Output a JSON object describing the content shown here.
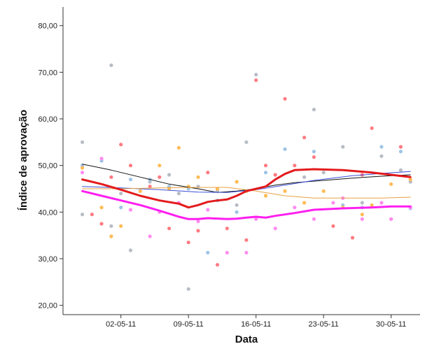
{
  "chart_data": {
    "type": "scatter",
    "xlabel": "Data",
    "ylabel": "Índice de aprovação",
    "x_axis": {
      "min": "2011-04-26",
      "max": "2011-06-02",
      "ticks": [
        "2011-05-02",
        "2011-05-09",
        "2011-05-16",
        "2011-05-23",
        "2011-05-30"
      ],
      "tick_labels": [
        "02-05-11",
        "09-05-11",
        "16-05-11",
        "23-05-11",
        "30-05-11"
      ]
    },
    "y_axis": {
      "min": 18,
      "max": 84,
      "ticks": [
        20,
        30,
        40,
        50,
        60,
        70,
        80
      ],
      "tick_labels": [
        "20,00",
        "30,00",
        "40,00",
        "50,00",
        "60,00",
        "70,00",
        "80,00"
      ]
    },
    "grid": false,
    "legend": "none",
    "series": [
      {
        "color": "#b8bcc4",
        "kind": "points",
        "points": [
          [
            "2011-04-28",
            55.0
          ],
          [
            "2011-04-28",
            39.5
          ],
          [
            "2011-05-01",
            71.5
          ],
          [
            "2011-05-01",
            37.0
          ],
          [
            "2011-05-02",
            44.0
          ],
          [
            "2011-05-03",
            31.8
          ],
          [
            "2011-05-05",
            46.5
          ],
          [
            "2011-05-07",
            48.0
          ],
          [
            "2011-05-08",
            44.0
          ],
          [
            "2011-05-09",
            23.5
          ],
          [
            "2011-05-10",
            45.5
          ],
          [
            "2011-05-12",
            44.5
          ],
          [
            "2011-05-14",
            41.5
          ],
          [
            "2011-05-15",
            55.0
          ],
          [
            "2011-05-16",
            69.5
          ],
          [
            "2011-05-18",
            48.0
          ],
          [
            "2011-05-21",
            47.5
          ],
          [
            "2011-05-22",
            62.0
          ],
          [
            "2011-05-23",
            48.5
          ],
          [
            "2011-05-25",
            54.0
          ],
          [
            "2011-05-27",
            42.0
          ],
          [
            "2011-05-29",
            52.0
          ],
          [
            "2011-05-31",
            49.0
          ],
          [
            "2011-06-01",
            46.5
          ]
        ]
      },
      {
        "color": "#9ec4e6",
        "kind": "points",
        "points": [
          [
            "2011-04-28",
            50.0
          ],
          [
            "2011-04-30",
            51.0
          ],
          [
            "2011-05-02",
            41.0
          ],
          [
            "2011-05-03",
            47.0
          ],
          [
            "2011-05-05",
            47.0
          ],
          [
            "2011-05-07",
            45.5
          ],
          [
            "2011-05-09",
            45.0
          ],
          [
            "2011-05-11",
            31.3
          ],
          [
            "2011-05-12",
            42.5
          ],
          [
            "2011-05-14",
            40.0
          ],
          [
            "2011-05-17",
            48.5
          ],
          [
            "2011-05-19",
            53.5
          ],
          [
            "2011-05-22",
            53.0
          ],
          [
            "2011-05-25",
            41.5
          ],
          [
            "2011-05-27",
            41.0
          ],
          [
            "2011-05-29",
            54.0
          ],
          [
            "2011-05-31",
            53.0
          ],
          [
            "2011-06-01",
            40.8
          ]
        ]
      },
      {
        "color": "#ffbb55",
        "kind": "points",
        "points": [
          [
            "2011-04-28",
            49.5
          ],
          [
            "2011-04-30",
            41.0
          ],
          [
            "2011-05-01",
            34.8
          ],
          [
            "2011-05-02",
            37.0
          ],
          [
            "2011-05-04",
            44.5
          ],
          [
            "2011-05-06",
            50.0
          ],
          [
            "2011-05-07",
            45.0
          ],
          [
            "2011-05-08",
            53.8
          ],
          [
            "2011-05-09",
            45.5
          ],
          [
            "2011-05-10",
            47.5
          ],
          [
            "2011-05-12",
            45.0
          ],
          [
            "2011-05-14",
            46.5
          ],
          [
            "2011-05-15",
            44.5
          ],
          [
            "2011-05-17",
            43.5
          ],
          [
            "2011-05-19",
            44.5
          ],
          [
            "2011-05-21",
            42.0
          ],
          [
            "2011-05-23",
            44.5
          ],
          [
            "2011-05-25",
            41.0
          ],
          [
            "2011-05-27",
            39.5
          ],
          [
            "2011-05-28",
            41.5
          ],
          [
            "2011-05-30",
            46.0
          ],
          [
            "2011-06-01",
            47.0
          ]
        ]
      },
      {
        "color": "#ff7b82",
        "kind": "points",
        "points": [
          [
            "2011-04-29",
            39.5
          ],
          [
            "2011-04-30",
            37.5
          ],
          [
            "2011-05-01",
            47.5
          ],
          [
            "2011-05-02",
            54.5
          ],
          [
            "2011-05-03",
            50.0
          ],
          [
            "2011-05-05",
            45.5
          ],
          [
            "2011-05-06",
            47.5
          ],
          [
            "2011-05-07",
            36.5
          ],
          [
            "2011-05-09",
            33.5
          ],
          [
            "2011-05-10",
            36.0
          ],
          [
            "2011-05-11",
            48.5
          ],
          [
            "2011-05-12",
            28.7
          ],
          [
            "2011-05-13",
            36.5
          ],
          [
            "2011-05-15",
            34.0
          ],
          [
            "2011-05-16",
            68.3
          ],
          [
            "2011-05-17",
            50.0
          ],
          [
            "2011-05-18",
            48.0
          ],
          [
            "2011-05-19",
            64.3
          ],
          [
            "2011-05-20",
            50.0
          ],
          [
            "2011-05-21",
            56.0
          ],
          [
            "2011-05-22",
            51.8
          ],
          [
            "2011-05-24",
            37.0
          ],
          [
            "2011-05-26",
            34.5
          ],
          [
            "2011-05-27",
            48.0
          ],
          [
            "2011-05-28",
            58.0
          ],
          [
            "2011-05-30",
            38.5
          ],
          [
            "2011-05-31",
            54.0
          ]
        ]
      },
      {
        "color": "#ff8cf0",
        "kind": "points",
        "points": [
          [
            "2011-04-28",
            48.5
          ],
          [
            "2011-04-30",
            51.5
          ],
          [
            "2011-05-03",
            40.5
          ],
          [
            "2011-05-05",
            34.8
          ],
          [
            "2011-05-06",
            40.0
          ],
          [
            "2011-05-08",
            42.0
          ],
          [
            "2011-05-10",
            38.0
          ],
          [
            "2011-05-11",
            40.5
          ],
          [
            "2011-05-13",
            31.3
          ],
          [
            "2011-05-15",
            31.3
          ],
          [
            "2011-05-16",
            38.5
          ],
          [
            "2011-05-18",
            36.5
          ],
          [
            "2011-05-20",
            41.0
          ],
          [
            "2011-05-22",
            38.5
          ],
          [
            "2011-05-24",
            42.0
          ],
          [
            "2011-05-25",
            43.0
          ],
          [
            "2011-05-27",
            38.5
          ],
          [
            "2011-05-29",
            42.0
          ],
          [
            "2011-05-30",
            38.5
          ],
          [
            "2011-06-01",
            41.0
          ]
        ]
      },
      {
        "color": "#e31a1c",
        "kind": "line",
        "width": 3,
        "points": [
          [
            "2011-04-28",
            47.0
          ],
          [
            "2011-04-30",
            46.0
          ],
          [
            "2011-05-02",
            44.8
          ],
          [
            "2011-05-04",
            43.5
          ],
          [
            "2011-05-06",
            42.5
          ],
          [
            "2011-05-08",
            41.8
          ],
          [
            "2011-05-09",
            41.0
          ],
          [
            "2011-05-10",
            41.5
          ],
          [
            "2011-05-11",
            42.2
          ],
          [
            "2011-05-12",
            42.5
          ],
          [
            "2011-05-13",
            42.7
          ],
          [
            "2011-05-14",
            43.5
          ],
          [
            "2011-05-15",
            44.5
          ],
          [
            "2011-05-16",
            45.0
          ],
          [
            "2011-05-17",
            45.5
          ],
          [
            "2011-05-18",
            47.0
          ],
          [
            "2011-05-19",
            48.2
          ],
          [
            "2011-05-20",
            49.0
          ],
          [
            "2011-05-22",
            49.2
          ],
          [
            "2011-05-25",
            49.0
          ],
          [
            "2011-05-28",
            48.5
          ],
          [
            "2011-05-30",
            48.0
          ],
          [
            "2011-06-01",
            47.5
          ]
        ]
      },
      {
        "color": "#ff1ef0",
        "kind": "line",
        "width": 3,
        "points": [
          [
            "2011-04-28",
            44.5
          ],
          [
            "2011-04-30",
            43.5
          ],
          [
            "2011-05-02",
            42.5
          ],
          [
            "2011-05-04",
            41.5
          ],
          [
            "2011-05-06",
            40.3
          ],
          [
            "2011-05-08",
            39.0
          ],
          [
            "2011-05-09",
            38.5
          ],
          [
            "2011-05-10",
            38.5
          ],
          [
            "2011-05-11",
            38.7
          ],
          [
            "2011-05-13",
            38.5
          ],
          [
            "2011-05-14",
            38.6
          ],
          [
            "2011-05-15",
            38.8
          ],
          [
            "2011-05-16",
            39.0
          ],
          [
            "2011-05-17",
            38.8
          ],
          [
            "2011-05-18",
            39.2
          ],
          [
            "2011-05-20",
            39.8
          ],
          [
            "2011-05-22",
            40.5
          ],
          [
            "2011-05-25",
            40.8
          ],
          [
            "2011-05-28",
            41.0
          ],
          [
            "2011-05-30",
            41.2
          ],
          [
            "2011-06-01",
            41.2
          ]
        ]
      },
      {
        "color": "#111111",
        "kind": "line",
        "width": 1,
        "points": [
          [
            "2011-04-28",
            50.3
          ],
          [
            "2011-05-01",
            49.0
          ],
          [
            "2011-05-04",
            47.5
          ],
          [
            "2011-05-07",
            46.0
          ],
          [
            "2011-05-10",
            45.0
          ],
          [
            "2011-05-12",
            44.2
          ],
          [
            "2011-05-14",
            44.5
          ],
          [
            "2011-05-16",
            45.0
          ],
          [
            "2011-05-18",
            45.8
          ],
          [
            "2011-05-20",
            46.3
          ],
          [
            "2011-05-23",
            46.8
          ],
          [
            "2011-05-26",
            47.3
          ],
          [
            "2011-05-29",
            47.7
          ],
          [
            "2011-06-01",
            48.0
          ]
        ]
      },
      {
        "color": "#3a4fd6",
        "kind": "line",
        "width": 1,
        "points": [
          [
            "2011-04-28",
            45.5
          ],
          [
            "2011-05-02",
            45.2
          ],
          [
            "2011-05-06",
            44.8
          ],
          [
            "2011-05-10",
            44.3
          ],
          [
            "2011-05-13",
            44.2
          ],
          [
            "2011-05-16",
            44.8
          ],
          [
            "2011-05-19",
            45.8
          ],
          [
            "2011-05-22",
            46.8
          ],
          [
            "2011-05-26",
            47.8
          ],
          [
            "2011-05-29",
            48.3
          ],
          [
            "2011-06-01",
            48.7
          ]
        ]
      },
      {
        "color": "#e8a040",
        "kind": "line",
        "width": 1,
        "points": [
          [
            "2011-04-28",
            45.0
          ],
          [
            "2011-05-02",
            45.0
          ],
          [
            "2011-05-06",
            45.2
          ],
          [
            "2011-05-10",
            45.3
          ],
          [
            "2011-05-13",
            45.3
          ],
          [
            "2011-05-16",
            44.5
          ],
          [
            "2011-05-19",
            43.5
          ],
          [
            "2011-05-22",
            43.0
          ],
          [
            "2011-05-26",
            43.0
          ],
          [
            "2011-05-29",
            43.0
          ],
          [
            "2011-06-01",
            43.2
          ]
        ]
      }
    ]
  }
}
